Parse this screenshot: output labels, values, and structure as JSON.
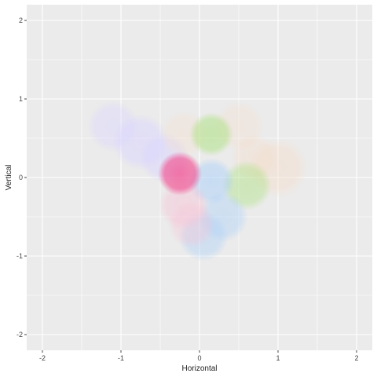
{
  "chart_data": {
    "type": "scatter",
    "xlabel": "Horizontal",
    "ylabel": "Vertical",
    "xlim": [
      -2.2,
      2.2
    ],
    "ylim": [
      -2.2,
      2.2
    ],
    "x_ticks": [
      -2,
      -1,
      0,
      1,
      2
    ],
    "y_ticks": [
      -2,
      -1,
      0,
      1,
      2
    ],
    "x_tick_labels": [
      "-2",
      "-1",
      "0",
      "1",
      "2"
    ],
    "y_tick_labels": [
      "-2",
      "-1",
      "0",
      "1",
      "2"
    ],
    "grid": true,
    "legend": "none",
    "panel_background": "#ebebeb",
    "grid_color": "#ffffff",
    "series": [
      {
        "color": "#d9d4ff",
        "points": [
          {
            "x": -1.1,
            "y": 0.65,
            "r": 0.33,
            "opacity": 0.45
          },
          {
            "x": -0.75,
            "y": 0.45,
            "r": 0.36,
            "opacity": 0.55
          },
          {
            "x": -0.45,
            "y": 0.25,
            "r": 0.32,
            "opacity": 0.55
          }
        ]
      },
      {
        "color": "#f5dcc8",
        "points": [
          {
            "x": -0.2,
            "y": 0.55,
            "r": 0.3,
            "opacity": 0.35
          },
          {
            "x": 0.5,
            "y": 0.65,
            "r": 0.32,
            "opacity": 0.35
          },
          {
            "x": 0.7,
            "y": 0.25,
            "r": 0.3,
            "opacity": 0.4
          },
          {
            "x": 1.0,
            "y": 0.12,
            "r": 0.38,
            "opacity": 0.45
          }
        ]
      },
      {
        "color": "#a8e07a",
        "points": [
          {
            "x": 0.15,
            "y": 0.55,
            "r": 0.28,
            "opacity": 0.55
          },
          {
            "x": 0.6,
            "y": -0.1,
            "r": 0.32,
            "opacity": 0.45
          }
        ]
      },
      {
        "color": "#a9cff8",
        "points": [
          {
            "x": 0.15,
            "y": -0.05,
            "r": 0.3,
            "opacity": 0.55
          },
          {
            "x": 0.3,
            "y": -0.5,
            "r": 0.32,
            "opacity": 0.45
          },
          {
            "x": 0.05,
            "y": -0.75,
            "r": 0.32,
            "opacity": 0.45
          }
        ]
      },
      {
        "color": "#f7c3d6",
        "points": [
          {
            "x": -0.2,
            "y": -0.35,
            "r": 0.32,
            "opacity": 0.5
          },
          {
            "x": -0.1,
            "y": -0.6,
            "r": 0.3,
            "opacity": 0.4
          }
        ]
      },
      {
        "color": "#f0609c",
        "points": [
          {
            "x": -0.25,
            "y": 0.05,
            "r": 0.28,
            "opacity": 0.85
          }
        ]
      }
    ]
  }
}
